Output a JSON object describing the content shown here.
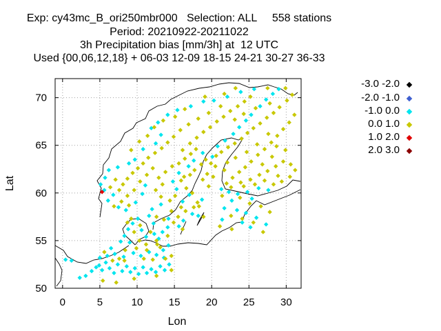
{
  "title": {
    "line1": "Exp: cy43mc_B_ori250mbr000   Selection: ALL     558 stations",
    "line2": "Period: 20210922-20211022",
    "line3": "3h Precipitation bias [mm/3h] at  12 UTC",
    "line4": "Used {00,06,12,18} + 06-03 12-09 18-15 24-21 30-27 36-33"
  },
  "chart_data": {
    "type": "scatter",
    "xlabel": "Lon",
    "ylabel": "Lat",
    "xlim": [
      -1,
      32
    ],
    "ylim": [
      50,
      72
    ],
    "xticks": [
      0,
      5,
      10,
      15,
      20,
      25,
      30
    ],
    "yticks": [
      50,
      55,
      60,
      65,
      70
    ],
    "grid": true,
    "legend_placement": "right",
    "legend": [
      {
        "label": "-3.0 -2.0",
        "color": "#000000"
      },
      {
        "label": "-2.0 -1.0",
        "color": "#3f5fd0"
      },
      {
        "label": "-1.0 0.0",
        "color": "#00e5ee"
      },
      {
        "label": "0.0 1.0",
        "color": "#c8c800"
      },
      {
        "label": "1.0 2.0",
        "color": "#e00000"
      },
      {
        "label": "2.0 3.0",
        "color": "#8b0000"
      }
    ],
    "series": [
      {
        "name": "-1.0 0.0",
        "color": "#00e5ee",
        "points": [
          [
            1.2,
            52.9
          ],
          [
            0.4,
            53.0
          ],
          [
            2.3,
            51.1
          ],
          [
            3.1,
            51.3
          ],
          [
            3.9,
            51.8
          ],
          [
            4.5,
            52.2
          ],
          [
            4.9,
            52.4
          ],
          [
            5.3,
            51.9
          ],
          [
            5.8,
            52.7
          ],
          [
            6.3,
            52.1
          ],
          [
            6.9,
            51.6
          ],
          [
            7.4,
            52.5
          ],
          [
            8.0,
            51.8
          ],
          [
            8.6,
            52.3
          ],
          [
            9.1,
            51.7
          ],
          [
            9.7,
            52.1
          ],
          [
            10.2,
            51.5
          ],
          [
            10.8,
            52.2
          ],
          [
            11.3,
            51.6
          ],
          [
            11.9,
            52.0
          ],
          [
            12.5,
            51.7
          ],
          [
            13.1,
            52.3
          ],
          [
            13.7,
            51.9
          ],
          [
            14.3,
            52.5
          ],
          [
            5.0,
            53.2
          ],
          [
            6.0,
            53.4
          ],
          [
            7.0,
            53.6
          ],
          [
            8.2,
            53.3
          ],
          [
            9.5,
            53.7
          ],
          [
            10.5,
            53.4
          ],
          [
            11.6,
            53.8
          ],
          [
            12.6,
            53.5
          ],
          [
            13.5,
            54.0
          ],
          [
            14.2,
            54.5
          ],
          [
            9.0,
            54.8
          ],
          [
            8.3,
            55.5
          ],
          [
            8.8,
            56.2
          ],
          [
            9.4,
            56.8
          ],
          [
            10.1,
            57.3
          ],
          [
            10.6,
            56.1
          ],
          [
            11.2,
            55.4
          ],
          [
            12.3,
            55.7
          ],
          [
            12.9,
            55.2
          ],
          [
            13.4,
            55.9
          ],
          [
            14.1,
            56.4
          ],
          [
            12.2,
            56.8
          ],
          [
            11.6,
            57.6
          ],
          [
            12.0,
            58.3
          ],
          [
            13.2,
            58.8
          ],
          [
            15.6,
            56.5
          ],
          [
            16.2,
            57.1
          ],
          [
            17.4,
            57.8
          ],
          [
            18.2,
            57.6
          ],
          [
            18.7,
            59.3
          ],
          [
            17.0,
            59.8
          ],
          [
            16.1,
            59.1
          ],
          [
            15.3,
            60.4
          ],
          [
            14.8,
            61.2
          ],
          [
            15.6,
            62.1
          ],
          [
            16.9,
            62.8
          ],
          [
            17.6,
            63.4
          ],
          [
            18.8,
            64.2
          ],
          [
            20.1,
            63.8
          ],
          [
            20.8,
            64.9
          ],
          [
            21.8,
            65.5
          ],
          [
            22.9,
            66.2
          ],
          [
            23.7,
            66.9
          ],
          [
            24.6,
            67.6
          ],
          [
            25.3,
            68.2
          ],
          [
            26.5,
            69.1
          ],
          [
            27.3,
            69.8
          ],
          [
            28.2,
            70.4
          ],
          [
            29.0,
            70.9
          ],
          [
            25.7,
            70.9
          ],
          [
            23.9,
            70.6
          ],
          [
            22.1,
            70.1
          ],
          [
            20.3,
            69.7
          ],
          [
            18.9,
            69.6
          ],
          [
            17.2,
            69.1
          ],
          [
            15.4,
            68.7
          ],
          [
            14.1,
            68.2
          ],
          [
            12.8,
            67.4
          ],
          [
            11.9,
            66.8
          ],
          [
            13.2,
            66.1
          ],
          [
            12.5,
            65.2
          ],
          [
            10.8,
            64.6
          ],
          [
            9.7,
            63.5
          ],
          [
            8.9,
            63.1
          ],
          [
            7.4,
            62.7
          ],
          [
            6.2,
            62.4
          ],
          [
            5.7,
            61.6
          ],
          [
            5.1,
            60.9
          ],
          [
            5.6,
            60.3
          ],
          [
            6.8,
            59.8
          ],
          [
            6.1,
            59.2
          ],
          [
            7.5,
            58.5
          ],
          [
            8.5,
            58.2
          ],
          [
            9.8,
            59.0
          ],
          [
            10.7,
            59.9
          ],
          [
            11.1,
            60.8
          ],
          [
            21.3,
            60.4
          ],
          [
            22.3,
            60.1
          ],
          [
            23.5,
            59.9
          ],
          [
            24.8,
            60.1
          ],
          [
            26.3,
            60.5
          ],
          [
            27.6,
            60.3
          ],
          [
            25.4,
            59.4
          ],
          [
            22.7,
            59.2
          ],
          [
            21.7,
            58.4
          ],
          [
            23.4,
            58.2
          ],
          [
            24.6,
            57.9
          ],
          [
            26.0,
            57.4
          ],
          [
            27.3,
            56.7
          ],
          [
            25.2,
            56.4
          ],
          [
            24.1,
            56.9
          ],
          [
            21.4,
            57.2
          ],
          [
            14.2,
            57.3
          ],
          [
            13.6,
            53.2
          ],
          [
            6.5,
            54.2
          ],
          [
            7.8,
            54.9
          ]
        ]
      },
      {
        "name": "0.0 1.0",
        "color": "#c8c800",
        "points": [
          [
            5.4,
            50.8
          ],
          [
            7.2,
            50.6
          ],
          [
            9.6,
            51.0
          ],
          [
            12.6,
            51.3
          ],
          [
            14.6,
            51.9
          ],
          [
            8.3,
            52.9
          ],
          [
            10.9,
            53.1
          ],
          [
            12.1,
            53.0
          ],
          [
            13.8,
            53.1
          ],
          [
            14.6,
            53.4
          ],
          [
            9.9,
            54.2
          ],
          [
            11.2,
            54.6
          ],
          [
            12.7,
            54.6
          ],
          [
            13.1,
            54.3
          ],
          [
            10.3,
            55.0
          ],
          [
            11.8,
            55.9
          ],
          [
            9.6,
            55.9
          ],
          [
            10.4,
            56.6
          ],
          [
            9.2,
            57.3
          ],
          [
            8.7,
            56.9
          ],
          [
            12.6,
            57.5
          ],
          [
            13.6,
            57.2
          ],
          [
            14.9,
            56.9
          ],
          [
            15.5,
            57.5
          ],
          [
            14.6,
            58.1
          ],
          [
            15.9,
            58.5
          ],
          [
            16.5,
            58.1
          ],
          [
            17.6,
            58.5
          ],
          [
            18.1,
            59.0
          ],
          [
            17.4,
            60.0
          ],
          [
            16.6,
            60.5
          ],
          [
            15.9,
            61.3
          ],
          [
            16.3,
            61.7
          ],
          [
            17.1,
            61.9
          ],
          [
            17.7,
            62.4
          ],
          [
            18.6,
            63.0
          ],
          [
            19.2,
            63.5
          ],
          [
            19.9,
            63.1
          ],
          [
            20.6,
            63.9
          ],
          [
            21.3,
            64.3
          ],
          [
            22.2,
            64.8
          ],
          [
            23.1,
            65.2
          ],
          [
            24.0,
            65.7
          ],
          [
            24.8,
            66.3
          ],
          [
            25.6,
            66.8
          ],
          [
            26.5,
            67.3
          ],
          [
            27.4,
            67.9
          ],
          [
            28.3,
            68.4
          ],
          [
            29.1,
            69.0
          ],
          [
            30.1,
            69.7
          ],
          [
            30.8,
            70.3
          ],
          [
            31.1,
            68.2
          ],
          [
            30.4,
            67.4
          ],
          [
            29.6,
            66.7
          ],
          [
            28.8,
            66.0
          ],
          [
            28.0,
            65.3
          ],
          [
            27.1,
            64.6
          ],
          [
            26.2,
            64.0
          ],
          [
            25.3,
            63.3
          ],
          [
            24.5,
            62.7
          ],
          [
            23.7,
            62.2
          ],
          [
            22.8,
            61.6
          ],
          [
            22.0,
            61.0
          ],
          [
            23.9,
            61.1
          ],
          [
            25.2,
            61.4
          ],
          [
            26.4,
            61.9
          ],
          [
            27.5,
            62.3
          ],
          [
            28.6,
            62.8
          ],
          [
            29.6,
            63.3
          ],
          [
            30.6,
            63.0
          ],
          [
            31.2,
            62.4
          ],
          [
            30.5,
            61.7
          ],
          [
            29.4,
            61.2
          ],
          [
            28.3,
            60.9
          ],
          [
            20.5,
            62.8
          ],
          [
            21.7,
            62.4
          ],
          [
            19.4,
            62.0
          ],
          [
            18.8,
            61.4
          ],
          [
            19.6,
            60.7
          ],
          [
            20.2,
            61.7
          ],
          [
            17.9,
            64.6
          ],
          [
            17.2,
            64.1
          ],
          [
            16.4,
            63.6
          ],
          [
            15.6,
            63.1
          ],
          [
            14.7,
            62.8
          ],
          [
            13.8,
            62.2
          ],
          [
            12.9,
            61.6
          ],
          [
            13.4,
            60.9
          ],
          [
            12.5,
            60.3
          ],
          [
            13.2,
            59.6
          ],
          [
            14.4,
            59.2
          ],
          [
            15.1,
            59.7
          ],
          [
            16.1,
            64.5
          ],
          [
            17.1,
            65.2
          ],
          [
            18.0,
            65.8
          ],
          [
            18.9,
            66.4
          ],
          [
            19.8,
            66.9
          ],
          [
            20.7,
            67.5
          ],
          [
            21.6,
            68.0
          ],
          [
            22.5,
            68.6
          ],
          [
            23.5,
            69.1
          ],
          [
            24.4,
            69.6
          ],
          [
            25.2,
            70.1
          ],
          [
            21.2,
            69.1
          ],
          [
            19.6,
            68.4
          ],
          [
            18.2,
            67.8
          ],
          [
            16.9,
            67.2
          ],
          [
            15.8,
            66.6
          ],
          [
            14.9,
            65.9
          ],
          [
            14.1,
            65.3
          ],
          [
            13.3,
            64.7
          ],
          [
            12.4,
            64.2
          ],
          [
            11.5,
            63.7
          ],
          [
            10.8,
            63.1
          ],
          [
            10.1,
            62.6
          ],
          [
            9.4,
            62.1
          ],
          [
            8.7,
            61.5
          ],
          [
            8.1,
            60.9
          ],
          [
            7.6,
            60.3
          ],
          [
            8.7,
            59.7
          ],
          [
            9.6,
            60.3
          ],
          [
            10.4,
            61.2
          ],
          [
            11.3,
            61.9
          ],
          [
            12.1,
            62.6
          ],
          [
            8.9,
            58.7
          ],
          [
            7.9,
            59.1
          ],
          [
            6.9,
            58.6
          ],
          [
            6.4,
            60.6
          ],
          [
            7.1,
            61.4
          ],
          [
            9.2,
            64.5
          ],
          [
            10.3,
            65.4
          ],
          [
            11.4,
            66.0
          ],
          [
            12.3,
            66.9
          ],
          [
            13.5,
            67.6
          ],
          [
            15.1,
            68.0
          ],
          [
            16.4,
            68.8
          ],
          [
            19.1,
            70.1
          ],
          [
            21.7,
            70.4
          ],
          [
            23.2,
            71.0
          ],
          [
            27.5,
            71.0
          ],
          [
            29.9,
            71.0
          ],
          [
            25.9,
            68.9
          ],
          [
            27.8,
            69.4
          ],
          [
            23.1,
            67.7
          ],
          [
            24.3,
            68.3
          ],
          [
            28.7,
            64.9
          ],
          [
            27.6,
            66.2
          ],
          [
            26.1,
            65.1
          ],
          [
            24.7,
            64.3
          ],
          [
            23.2,
            63.7
          ],
          [
            22.1,
            63.2
          ],
          [
            26.8,
            63.0
          ],
          [
            28.1,
            63.8
          ],
          [
            29.9,
            64.5
          ],
          [
            22.6,
            60.6
          ],
          [
            24.3,
            60.7
          ],
          [
            25.8,
            60.9
          ],
          [
            27.1,
            61.3
          ],
          [
            28.9,
            61.8
          ],
          [
            21.4,
            59.7
          ],
          [
            23.8,
            59.5
          ],
          [
            25.1,
            58.9
          ],
          [
            26.6,
            58.6
          ],
          [
            27.8,
            58.0
          ],
          [
            22.6,
            57.6
          ],
          [
            24.1,
            57.3
          ],
          [
            25.6,
            56.9
          ],
          [
            21.1,
            56.5
          ],
          [
            22.7,
            56.2
          ],
          [
            26.9,
            55.9
          ],
          [
            18.9,
            57.5
          ],
          [
            18.3,
            58.6
          ],
          [
            16.1,
            56.2
          ],
          [
            14.1,
            55.5
          ],
          [
            12.6,
            55.0
          ],
          [
            11.3,
            54.0
          ],
          [
            8.4,
            54.0
          ],
          [
            7.6,
            53.1
          ],
          [
            6.7,
            52.9
          ],
          [
            5.6,
            53.8
          ]
        ]
      },
      {
        "name": "1.0 2.0",
        "color": "#e00000",
        "points": [
          [
            5.3,
            60.1
          ]
        ]
      }
    ]
  },
  "map_labels": {
    "coastline": "Scandinavia and Baltic coastline"
  }
}
